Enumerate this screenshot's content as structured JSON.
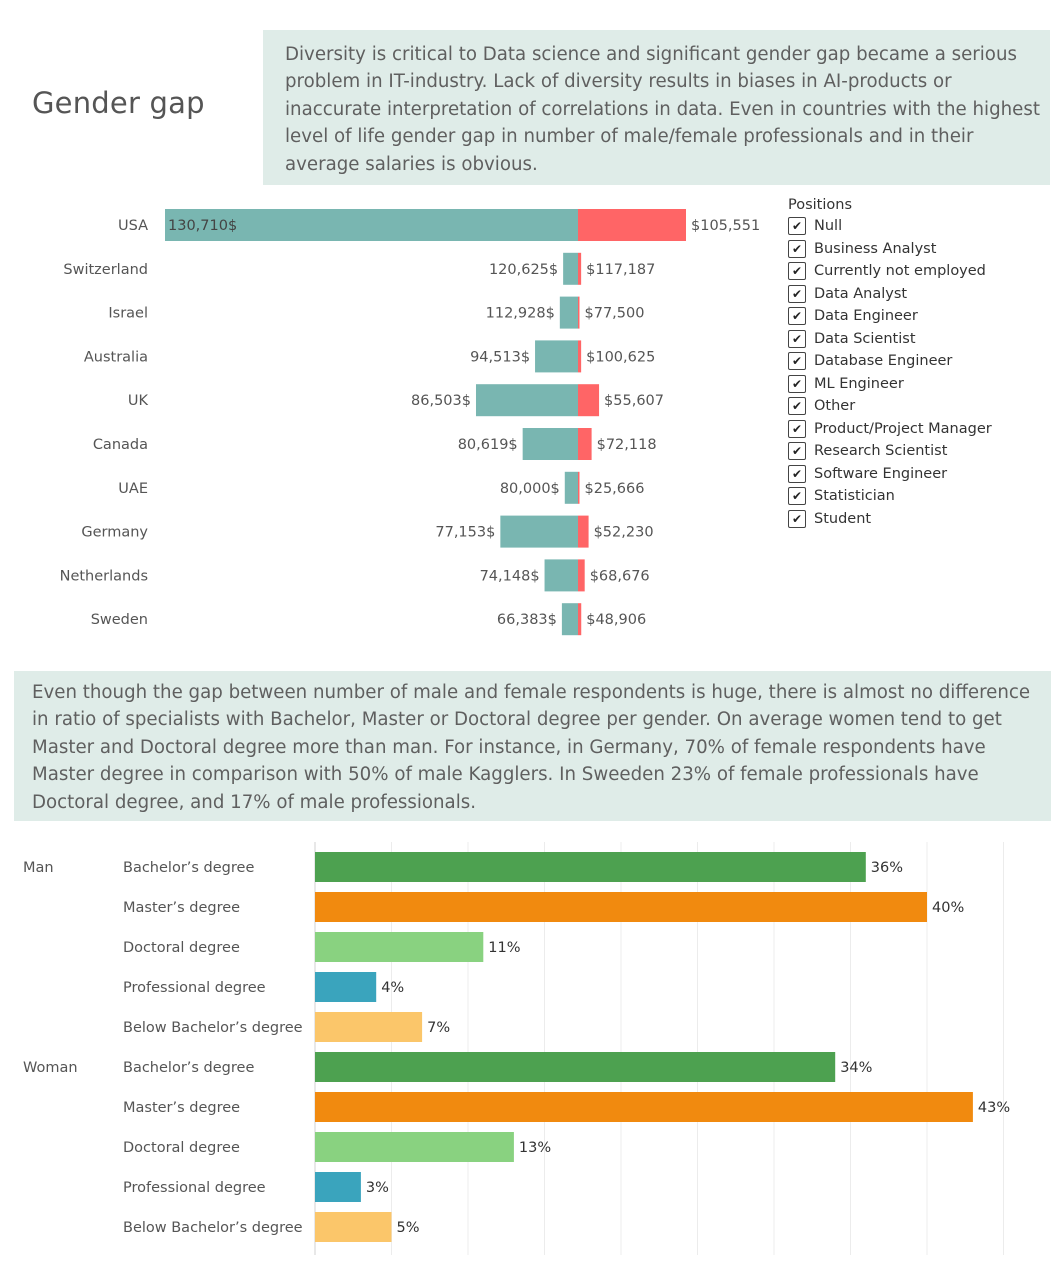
{
  "title": "Gender gap",
  "intro_text": "Diversity is critical to Data science and significant gender gap became a serious problem in IT-industry. Lack of diversity results in biases in AI-products or inaccurate interpretation of correlations in data. Even in countries with the highest level of life gender gap in number of male/female professionals and in their average salaries is obvious.",
  "education_text": "Even though the gap between number of male and female respondents is huge, there is almost no difference in ratio of specialists with Bachelor, Master or Doctoral degree per gender. On average women tend to get Master and Doctoral degree more than man. For instance, in Germany, 70% of female respondents have Master degree in comparison with 50% of male Kagglers. In Sweeden 23% of female professionals have Doctoral degree, and 17% of male professionals.",
  "legend": {
    "title": "Positions",
    "checkmark": "✔",
    "items": [
      "Null",
      "Business Analyst",
      "Currently not employed",
      "Data Analyst",
      "Data Engineer",
      "Data Scientist",
      "Database Engineer",
      "ML Engineer",
      "Other",
      "Product/Project Manager",
      "Research Scientist",
      "Software Engineer",
      "Statistician",
      "Student"
    ]
  },
  "colors": {
    "male": "#79b6b1",
    "female": "#ff6566",
    "bachelor": "#4da150",
    "master": "#f18a0f",
    "doctoral": "#89d280",
    "professional": "#3aa4bd",
    "below_bachelor": "#fbc66a"
  },
  "chart_data": [
    {
      "type": "bar",
      "categories": [
        "USA",
        "Switzerland",
        "Israel",
        "Australia",
        "UK",
        "Canada",
        "UAE",
        "Germany",
        "Netherlands",
        "Sweden"
      ],
      "series": [
        {
          "values": [
            130710,
            120625,
            112928,
            94513,
            86503,
            80619,
            80000,
            77153,
            74148,
            66383
          ],
          "labels": [
            "130,710$",
            "120,625$",
            "112,928$",
            "94,513$",
            "86,503$",
            "80,619$",
            "80,000$",
            "77,153$",
            "74,148$",
            "66,383$"
          ],
          "bar_extent": [
            1.0,
            0.036,
            0.044,
            0.104,
            0.247,
            0.134,
            0.032,
            0.188,
            0.081,
            0.039
          ]
        },
        {
          "values": [
            105551,
            117187,
            77500,
            100625,
            55607,
            72118,
            25666,
            52230,
            68676,
            48906
          ],
          "labels": [
            "$105,551",
            "$117,187",
            "$77,500",
            "$100,625",
            "$55,607",
            "$72,118",
            "$25,666",
            "$52,230",
            "$68,676",
            "$48,906"
          ],
          "bar_extent": [
            1.0,
            0.029,
            0.005,
            0.029,
            0.195,
            0.126,
            0.01,
            0.098,
            0.062,
            0.03
          ]
        }
      ]
    },
    {
      "type": "bar",
      "groups": [
        "Man",
        "Woman"
      ],
      "categories": [
        "Bachelor’s degree",
        "Master’s degree",
        "Doctoral degree",
        "Professional degree",
        "Below Bachelor’s degree"
      ],
      "values": [
        [
          36,
          40,
          11,
          4,
          7
        ],
        [
          34,
          43,
          13,
          3,
          5
        ]
      ],
      "labels": [
        [
          "36%",
          "40%",
          "11%",
          "4%",
          "7%"
        ],
        [
          "34%",
          "43%",
          "13%",
          "3%",
          "5%"
        ]
      ],
      "xlim": [
        0,
        48
      ]
    }
  ]
}
